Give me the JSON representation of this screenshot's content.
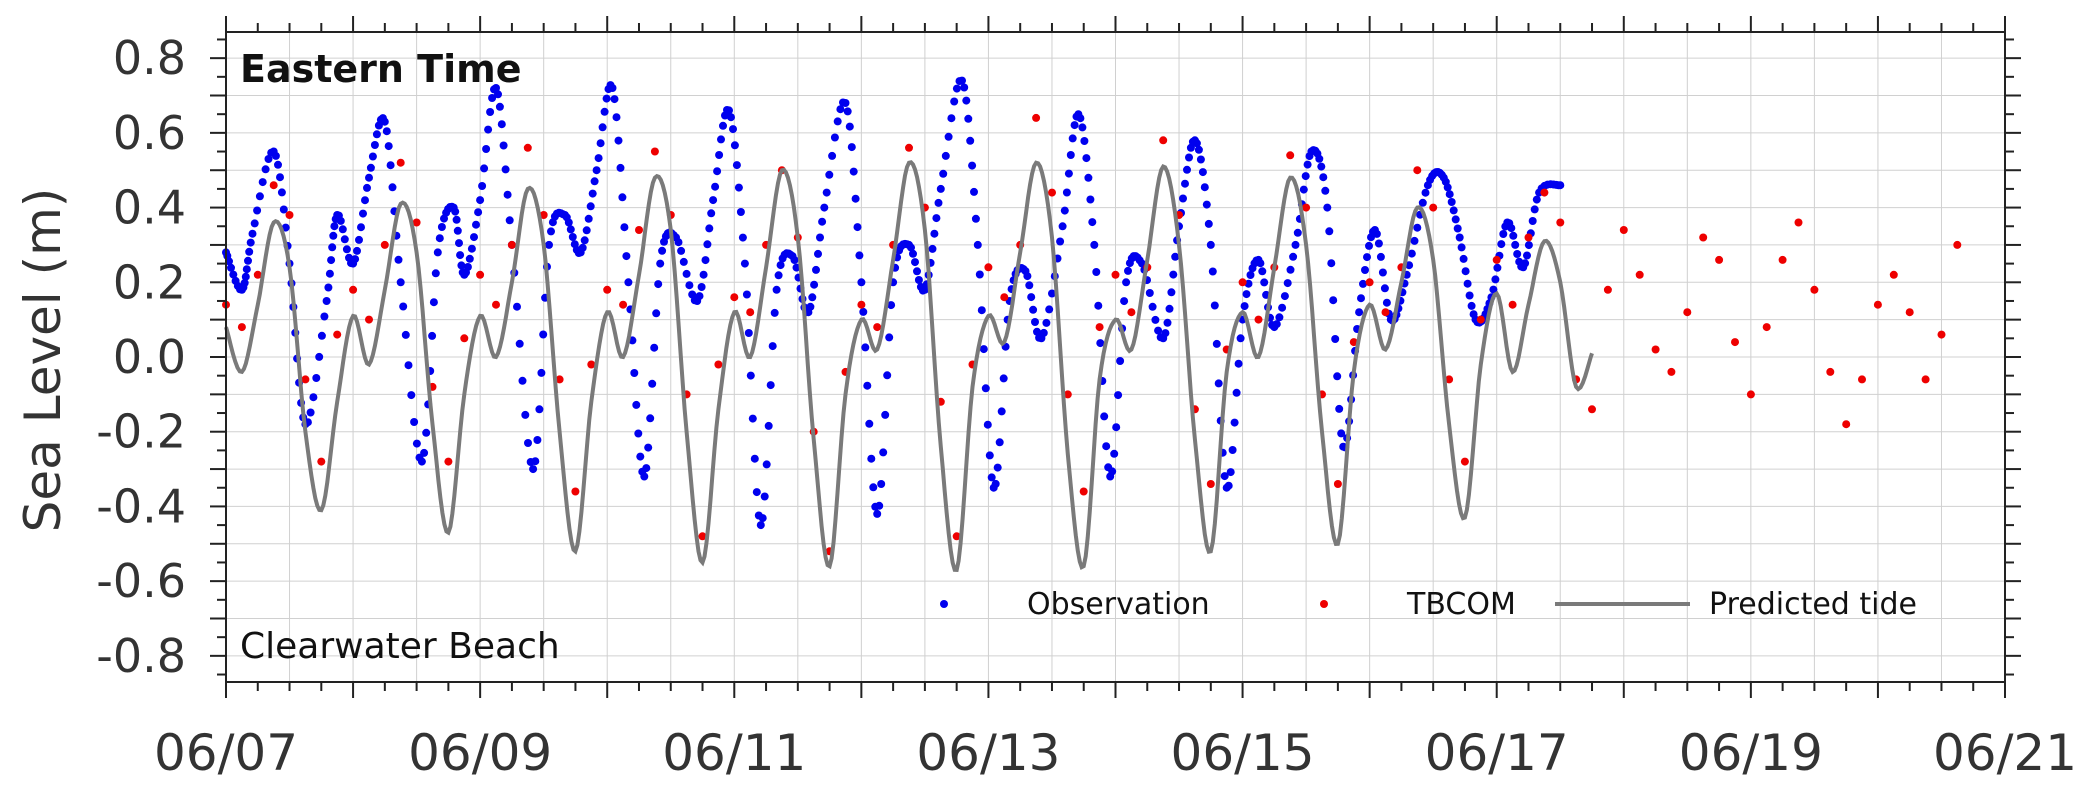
{
  "chart_data": {
    "type": "line",
    "title": "Eastern Time",
    "annotation": "Clearwater Beach",
    "ylabel": "Sea Level (m)",
    "xlabel": "",
    "xlim": [
      "06/07",
      "06/21"
    ],
    "ylim": [
      -0.87,
      0.87
    ],
    "x_ticks": [
      "06/07",
      "06/09",
      "06/11",
      "06/13",
      "06/15",
      "06/17",
      "06/19",
      "06/21"
    ],
    "y_ticks": [
      "-0.8",
      "-0.6",
      "-0.4",
      "-0.2",
      "0.0",
      "0.2",
      "0.4",
      "0.6",
      "0.8"
    ],
    "grid": true,
    "legend_position": "bottom-right",
    "series": [
      {
        "name": "Observation",
        "kind": "scatter",
        "color": "#0000ee",
        "x": [
          "06/07 00:00",
          "06/07 03:00",
          "06/07 05:00",
          "06/07 09:00",
          "06/07 12:00",
          "06/07 15:00",
          "06/07 19:00",
          "06/07 21:00",
          "06/08 00:00",
          "06/08 03:00",
          "06/08 06:00",
          "06/08 09:00",
          "06/08 13:00",
          "06/08 16:00",
          "06/08 19:00",
          "06/08 21:00",
          "06/09 00:00",
          "06/09 03:00",
          "06/09 06:00",
          "06/09 10:00",
          "06/09 13:00",
          "06/09 16:00",
          "06/09 19:00",
          "06/09 22:00",
          "06/10 01:00",
          "06/10 04:00",
          "06/10 07:00",
          "06/10 10:00",
          "06/10 13:00",
          "06/10 17:00",
          "06/10 20:00",
          "06/10 23:00",
          "06/11 02:00",
          "06/11 05:00",
          "06/11 08:00",
          "06/11 11:00",
          "06/11 14:00",
          "06/11 17:00",
          "06/11 21:00",
          "06/12 00:00",
          "06/12 03:00",
          "06/12 06:00",
          "06/12 09:00",
          "06/12 12:00",
          "06/12 15:00",
          "06/12 19:00",
          "06/12 22:00",
          "06/13 01:00",
          "06/13 04:00",
          "06/13 07:00",
          "06/13 10:00",
          "06/13 14:00",
          "06/13 17:00",
          "06/13 20:00",
          "06/13 23:00",
          "06/14 02:00",
          "06/14 05:00",
          "06/14 09:00",
          "06/14 12:00",
          "06/14 15:00",
          "06/14 18:00",
          "06/14 21:00",
          "06/15 00:00",
          "06/15 03:00",
          "06/15 06:00",
          "06/15 10:00",
          "06/15 13:00",
          "06/15 16:00",
          "06/15 19:00",
          "06/15 22:00",
          "06/16 01:00",
          "06/16 04:00",
          "06/16 07:00",
          "06/16 11:00",
          "06/16 14:00",
          "06/16 17:00",
          "06/16 20:00",
          "06/16 23:00",
          "06/17 02:00",
          "06/17 05:00",
          "06/17 08:00",
          "06/17 12:00"
        ],
        "y": [
          0.28,
          0.18,
          0.33,
          0.55,
          0.25,
          -0.18,
          0.15,
          0.38,
          0.25,
          0.48,
          0.63,
          0.2,
          -0.28,
          0.28,
          0.4,
          0.22,
          0.42,
          0.72,
          0.3,
          -0.3,
          0.3,
          0.38,
          0.28,
          0.5,
          0.72,
          0.2,
          -0.32,
          0.25,
          0.32,
          0.15,
          0.42,
          0.66,
          0.25,
          -0.45,
          0.18,
          0.27,
          0.12,
          0.4,
          0.68,
          0.2,
          -0.42,
          0.2,
          0.3,
          0.18,
          0.45,
          0.74,
          0.3,
          -0.35,
          0.15,
          0.23,
          0.05,
          0.35,
          0.65,
          0.3,
          -0.32,
          0.2,
          0.25,
          0.05,
          0.35,
          0.58,
          0.3,
          -0.35,
          0.1,
          0.26,
          0.08,
          0.3,
          0.55,
          0.4,
          -0.24,
          0.12,
          0.34,
          0.1,
          0.22,
          0.46,
          0.48,
          0.32,
          0.1,
          0.16,
          0.36,
          0.24,
          0.44,
          0.46
        ]
      },
      {
        "name": "TBCOM",
        "kind": "scatter",
        "color": "#ee0000",
        "x": [
          "06/07 00:00",
          "06/07 03:00",
          "06/07 06:00",
          "06/07 09:00",
          "06/07 12:00",
          "06/07 15:00",
          "06/07 18:00",
          "06/07 21:00",
          "06/08 00:00",
          "06/08 03:00",
          "06/08 06:00",
          "06/08 09:00",
          "06/08 12:00",
          "06/08 15:00",
          "06/08 18:00",
          "06/08 21:00",
          "06/09 00:00",
          "06/09 03:00",
          "06/09 06:00",
          "06/09 09:00",
          "06/09 12:00",
          "06/09 15:00",
          "06/09 18:00",
          "06/09 21:00",
          "06/10 00:00",
          "06/10 03:00",
          "06/10 06:00",
          "06/10 09:00",
          "06/10 12:00",
          "06/10 15:00",
          "06/10 18:00",
          "06/10 21:00",
          "06/11 00:00",
          "06/11 03:00",
          "06/11 06:00",
          "06/11 09:00",
          "06/11 12:00",
          "06/11 15:00",
          "06/11 18:00",
          "06/11 21:00",
          "06/12 00:00",
          "06/12 03:00",
          "06/12 06:00",
          "06/12 09:00",
          "06/12 12:00",
          "06/12 15:00",
          "06/12 18:00",
          "06/12 21:00",
          "06/13 00:00",
          "06/13 03:00",
          "06/13 06:00",
          "06/13 09:00",
          "06/13 12:00",
          "06/13 15:00",
          "06/13 18:00",
          "06/13 21:00",
          "06/14 00:00",
          "06/14 03:00",
          "06/14 06:00",
          "06/14 09:00",
          "06/14 12:00",
          "06/14 15:00",
          "06/14 18:00",
          "06/14 21:00",
          "06/15 00:00",
          "06/15 03:00",
          "06/15 06:00",
          "06/15 09:00",
          "06/15 12:00",
          "06/15 15:00",
          "06/15 18:00",
          "06/15 21:00",
          "06/16 00:00",
          "06/16 03:00",
          "06/16 06:00",
          "06/16 09:00",
          "06/16 12:00",
          "06/16 15:00",
          "06/16 18:00",
          "06/16 21:00",
          "06/17 00:00",
          "06/17 03:00",
          "06/17 06:00",
          "06/17 09:00",
          "06/17 12:00",
          "06/17 15:00",
          "06/17 18:00",
          "06/17 21:00",
          "06/18 00:00",
          "06/18 03:00",
          "06/18 06:00",
          "06/18 09:00",
          "06/18 12:00",
          "06/18 15:00",
          "06/18 18:00",
          "06/18 21:00",
          "06/19 00:00",
          "06/19 03:00",
          "06/19 06:00",
          "06/19 09:00",
          "06/19 12:00",
          "06/19 15:00",
          "06/19 18:00",
          "06/19 21:00",
          "06/20 00:00",
          "06/20 03:00",
          "06/20 06:00",
          "06/20 09:00",
          "06/20 12:00",
          "06/20 15:00"
        ],
        "y": [
          0.14,
          0.08,
          0.22,
          0.46,
          0.38,
          -0.06,
          -0.28,
          0.06,
          0.18,
          0.1,
          0.3,
          0.52,
          0.36,
          -0.08,
          -0.28,
          0.05,
          0.22,
          0.14,
          0.3,
          0.56,
          0.38,
          -0.06,
          -0.36,
          -0.02,
          0.18,
          0.14,
          0.34,
          0.55,
          0.38,
          -0.1,
          -0.48,
          -0.02,
          0.16,
          0.12,
          0.3,
          0.5,
          0.32,
          -0.2,
          -0.52,
          -0.04,
          0.14,
          0.08,
          0.3,
          0.56,
          0.4,
          -0.12,
          -0.48,
          -0.02,
          0.24,
          0.16,
          0.3,
          0.64,
          0.44,
          -0.1,
          -0.36,
          0.08,
          0.22,
          0.12,
          0.24,
          0.58,
          0.38,
          -0.14,
          -0.34,
          0.02,
          0.2,
          0.1,
          0.24,
          0.54,
          0.4,
          -0.1,
          -0.34,
          0.04,
          0.2,
          0.12,
          0.24,
          0.5,
          0.4,
          -0.06,
          -0.28,
          0.1,
          0.26,
          0.14,
          0.32,
          0.44,
          0.36,
          -0.06,
          -0.14,
          0.18,
          0.34,
          0.22,
          0.02,
          -0.04,
          0.12,
          0.32,
          0.26,
          0.04,
          -0.1,
          0.08,
          0.26,
          0.36,
          0.18,
          -0.04,
          -0.18,
          -0.06,
          0.14,
          0.22,
          0.12,
          -0.06,
          0.06,
          0.3
        ]
      },
      {
        "name": "Predicted tide",
        "kind": "line",
        "color": "#7a7a7a",
        "x": [
          "06/07 00:00",
          "06/07 03:00",
          "06/07 06:00",
          "06/07 09:00",
          "06/07 12:00",
          "06/07 15:00",
          "06/07 18:00",
          "06/07 21:00",
          "06/08 00:00",
          "06/08 03:00",
          "06/08 06:00",
          "06/08 09:00",
          "06/08 12:00",
          "06/08 15:00",
          "06/08 18:00",
          "06/08 21:00",
          "06/09 00:00",
          "06/09 03:00",
          "06/09 06:00",
          "06/09 09:00",
          "06/09 12:00",
          "06/09 15:00",
          "06/09 18:00",
          "06/09 21:00",
          "06/10 00:00",
          "06/10 03:00",
          "06/10 06:00",
          "06/10 09:00",
          "06/10 12:00",
          "06/10 15:00",
          "06/10 18:00",
          "06/10 21:00",
          "06/11 00:00",
          "06/11 03:00",
          "06/11 06:00",
          "06/11 09:00",
          "06/11 12:00",
          "06/11 15:00",
          "06/11 18:00",
          "06/11 21:00",
          "06/12 00:00",
          "06/12 03:00",
          "06/12 06:00",
          "06/12 09:00",
          "06/12 12:00",
          "06/12 15:00",
          "06/12 18:00",
          "06/12 21:00",
          "06/13 00:00",
          "06/13 03:00",
          "06/13 06:00",
          "06/13 09:00",
          "06/13 12:00",
          "06/13 15:00",
          "06/13 18:00",
          "06/13 21:00",
          "06/14 00:00",
          "06/14 03:00",
          "06/14 06:00",
          "06/14 09:00",
          "06/14 12:00",
          "06/14 15:00",
          "06/14 18:00",
          "06/14 21:00",
          "06/15 00:00",
          "06/15 03:00",
          "06/15 06:00",
          "06/15 09:00",
          "06/15 12:00",
          "06/15 15:00",
          "06/15 18:00",
          "06/15 21:00",
          "06/16 00:00",
          "06/16 03:00",
          "06/16 06:00",
          "06/16 09:00",
          "06/16 12:00",
          "06/16 15:00",
          "06/16 18:00",
          "06/16 21:00",
          "06/17 00:00",
          "06/17 03:00",
          "06/17 06:00",
          "06/17 09:00",
          "06/17 12:00",
          "06/17 15:00",
          "06/17 18:00"
        ],
        "y": [
          0.08,
          -0.04,
          0.14,
          0.36,
          0.24,
          -0.2,
          -0.41,
          -0.12,
          0.11,
          -0.02,
          0.18,
          0.41,
          0.28,
          -0.18,
          -0.47,
          -0.1,
          0.11,
          0.0,
          0.2,
          0.45,
          0.3,
          -0.2,
          -0.52,
          -0.12,
          0.12,
          0.0,
          0.22,
          0.48,
          0.34,
          -0.2,
          -0.55,
          -0.14,
          0.12,
          0.0,
          0.24,
          0.5,
          0.32,
          -0.22,
          -0.56,
          -0.1,
          0.1,
          0.02,
          0.26,
          0.52,
          0.34,
          -0.24,
          -0.57,
          -0.08,
          0.11,
          0.04,
          0.28,
          0.52,
          0.32,
          -0.26,
          -0.56,
          -0.06,
          0.1,
          0.02,
          0.26,
          0.51,
          0.3,
          -0.22,
          -0.52,
          -0.04,
          0.12,
          0.0,
          0.24,
          0.48,
          0.3,
          -0.2,
          -0.5,
          -0.04,
          0.14,
          0.02,
          0.2,
          0.4,
          0.26,
          -0.18,
          -0.43,
          -0.02,
          0.17,
          -0.04,
          0.14,
          0.31,
          0.2,
          -0.08,
          0.01
        ]
      }
    ]
  }
}
